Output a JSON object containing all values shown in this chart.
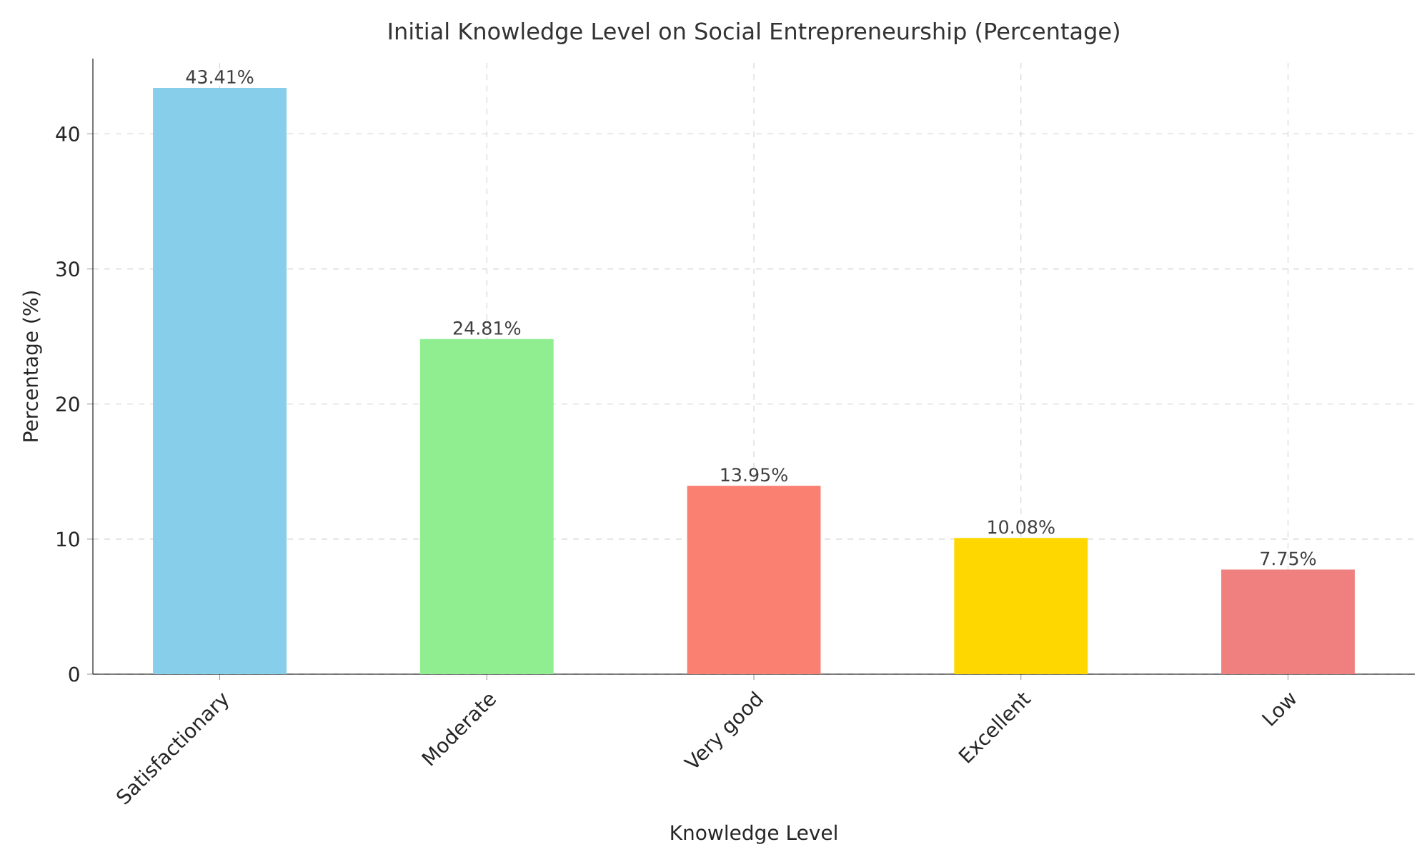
{
  "chart_data": {
    "type": "bar",
    "title": "Initial Knowledge Level on Social Entrepreneurship (Percentage)",
    "xlabel": "Knowledge Level",
    "ylabel": "Percentage (%)",
    "categories": [
      "Satisfactionary",
      "Moderate",
      "Very good",
      "Excellent",
      "Low"
    ],
    "values": [
      43.41,
      24.81,
      13.95,
      10.08,
      7.75
    ],
    "value_labels": [
      "43.41%",
      "24.81%",
      "13.95%",
      "10.08%",
      "7.75%"
    ],
    "colors": [
      "#87ceeb",
      "#90ee90",
      "#fa8072",
      "#ffd700",
      "#f08080"
    ],
    "ylim": [
      0,
      45.58
    ],
    "yticks": [
      0,
      10,
      20,
      30,
      40
    ],
    "grid": true
  }
}
